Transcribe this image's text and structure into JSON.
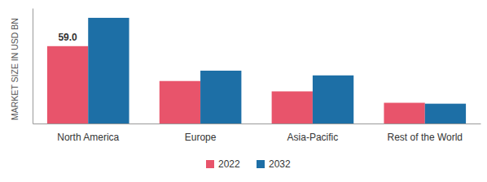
{
  "chart_data": {
    "type": "bar",
    "y_label": "MARKET SIZE IN USD BN",
    "categories": [
      "North America",
      "Europe",
      "Asia-Pacific",
      "Rest of the World"
    ],
    "series": [
      {
        "name": "2022",
        "color": "#e8546b",
        "values": [
          59.0,
          32.4,
          24.5,
          15.8
        ],
        "value_labels": [
          "59.0",
          null,
          null,
          null
        ]
      },
      {
        "name": "2032",
        "color": "#1d6fa6",
        "values": [
          80.6,
          40.3,
          36.7,
          15.1
        ]
      }
    ],
    "ylim": [
      0,
      88
    ],
    "yticks": [],
    "grid": false,
    "tick_labels": "x",
    "data_labels": true,
    "legend": "bottom"
  }
}
